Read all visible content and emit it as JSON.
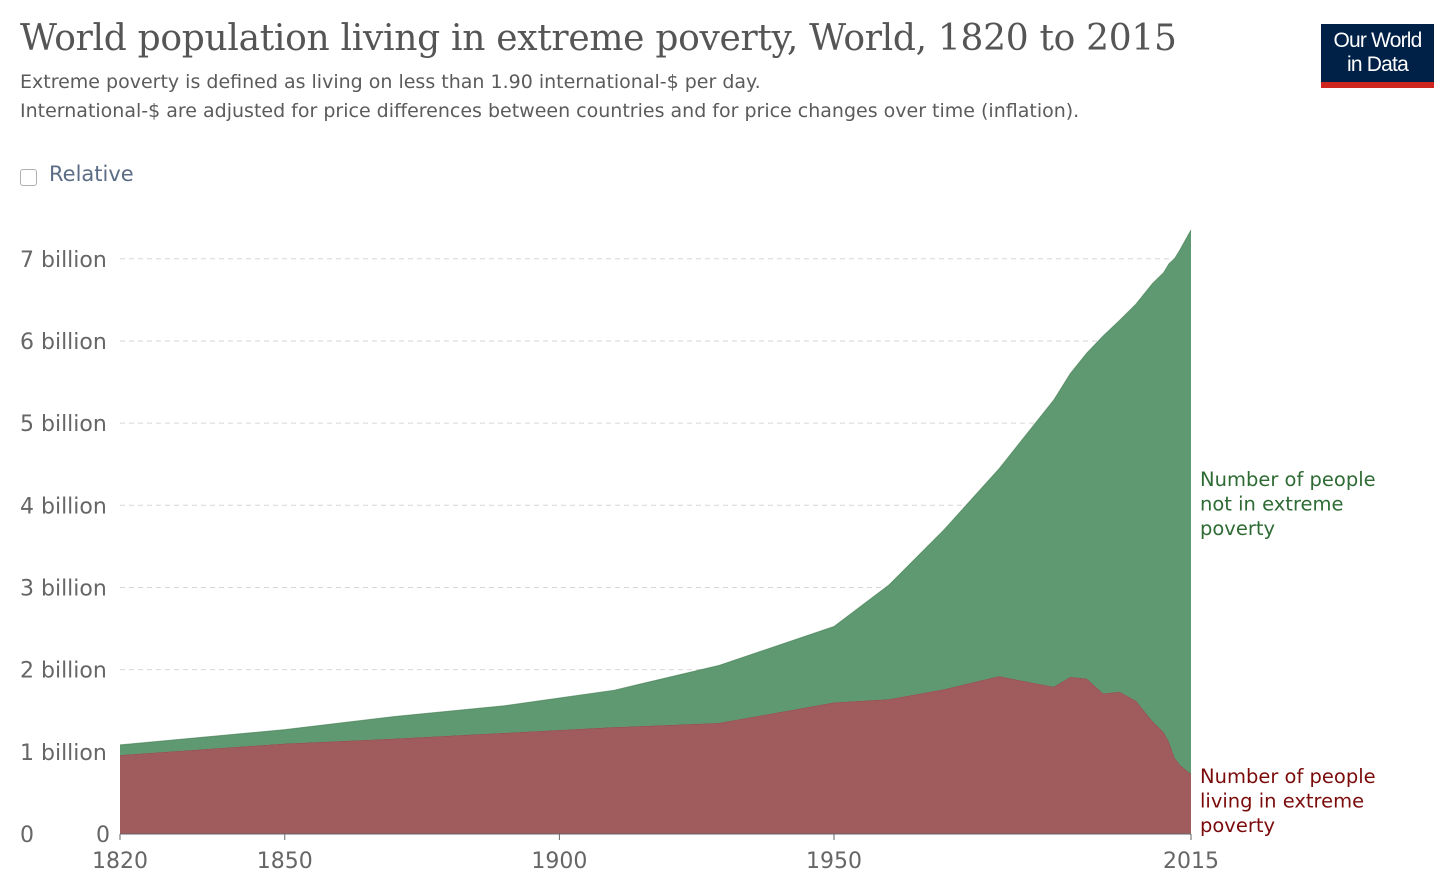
{
  "header": {
    "title": "World population living in extreme poverty, World, 1820 to 2015",
    "subtitle_1": "Extreme poverty is defined as living on less than 1.90 international-$ per day.",
    "subtitle_2": "International-$ are adjusted for price differences between countries and for price changes over time (inflation)."
  },
  "logo": {
    "line1": "Our World",
    "line2": "in Data",
    "bg_color": "#002147",
    "accent_color": "#ce261e"
  },
  "controls": {
    "relative_label": "Relative",
    "relative_checked": false
  },
  "chart_data": {
    "type": "area",
    "stacked": true,
    "x_label": "",
    "y_label": "",
    "x_ticks": [
      1820,
      1850,
      1900,
      1950,
      2015
    ],
    "y_ticks": [
      {
        "value": 0,
        "label": "0"
      },
      {
        "value": 1000000000,
        "label": "1 billion"
      },
      {
        "value": 2000000000,
        "label": "2 billion"
      },
      {
        "value": 3000000000,
        "label": "3 billion"
      },
      {
        "value": 4000000000,
        "label": "4 billion"
      },
      {
        "value": 5000000000,
        "label": "5 billion"
      },
      {
        "value": 6000000000,
        "label": "6 billion"
      },
      {
        "value": 7000000000,
        "label": "7 billion"
      }
    ],
    "x_range": [
      1820,
      2015
    ],
    "y_range": [
      0,
      7350000000
    ],
    "grid": true,
    "x": [
      1820,
      1850,
      1870,
      1890,
      1910,
      1929,
      1950,
      1960,
      1970,
      1980,
      1990,
      1993,
      1996,
      1999,
      2002,
      2005,
      2008,
      2010,
      2011,
      2012,
      2013,
      2015
    ],
    "series": [
      {
        "name": "Number of people living in extreme poverty",
        "color": "#a05c5c",
        "label_color": "#7b0b0b",
        "values": [
          960000000,
          1100000000,
          1160000000,
          1230000000,
          1300000000,
          1350000000,
          1600000000,
          1640000000,
          1760000000,
          1920000000,
          1790000000,
          1910000000,
          1890000000,
          1710000000,
          1730000000,
          1620000000,
          1370000000,
          1240000000,
          1120000000,
          930000000,
          840000000,
          730000000
        ]
      },
      {
        "name": "Number of people not in extreme poverty",
        "color": "#5f9971",
        "label_color": "#2e6b34",
        "values": [
          125000000,
          170000000,
          270000000,
          330000000,
          450000000,
          700000000,
          925000000,
          1390000000,
          1940000000,
          2520000000,
          3490000000,
          3690000000,
          3960000000,
          4350000000,
          4520000000,
          4830000000,
          5330000000,
          5590000000,
          5820000000,
          6070000000,
          6270000000,
          6620000000
        ]
      }
    ],
    "end_labels": [
      [
        "Number of people",
        "not in extreme",
        "poverty"
      ],
      [
        "Number of people",
        "living in extreme",
        "poverty"
      ]
    ]
  }
}
